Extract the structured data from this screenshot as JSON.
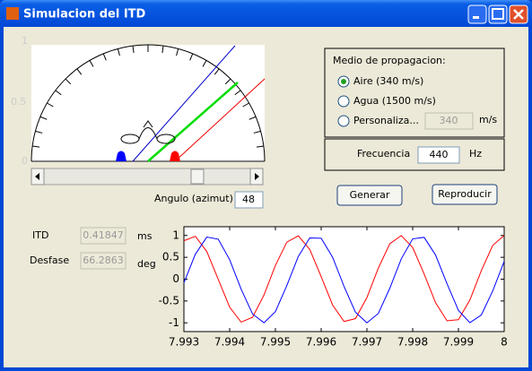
{
  "window": {
    "title": "Simulacion del ITD"
  },
  "diagram": {
    "axis_labels": [
      "1",
      "0.5",
      "0"
    ]
  },
  "angle": {
    "label": "Angulo (azimut)",
    "value": "48"
  },
  "medium": {
    "title": "Medio de propagacion:",
    "options": [
      "Aire (340 m/s)",
      "Agua (1500 m/s)",
      "Personaliza..."
    ],
    "custom_value": "340",
    "custom_unit": "m/s"
  },
  "frequency": {
    "label": "Frecuencia",
    "value": "440",
    "unit": "Hz"
  },
  "buttons": [
    "Generar",
    "Reproducir"
  ],
  "itd": {
    "label": "ITD",
    "value": "0.41847",
    "unit": "ms"
  },
  "phase": {
    "label": "Desfase",
    "value": "66.2863",
    "unit": "deg"
  },
  "plot": {
    "type": "line",
    "x": [
      7.993,
      7.99325,
      7.9935,
      7.99375,
      7.994,
      7.99425,
      7.9945,
      7.99475,
      7.995,
      7.99525,
      7.9955,
      7.99575,
      7.996,
      7.99625,
      7.9965,
      7.99675,
      7.997,
      7.99725,
      7.9975,
      7.99775,
      7.998,
      7.99825,
      7.9985,
      7.99875,
      7.999,
      7.99925,
      7.9995,
      7.99975,
      8
    ],
    "series": [
      {
        "color": "#ff0000",
        "values": [
          0.879,
          0.981,
          0.633,
          -0.005,
          -0.641,
          -0.983,
          -0.874,
          -0.363,
          0.314,
          0.847,
          0.991,
          0.681,
          0.058,
          -0.592,
          -0.97,
          -0.903,
          -0.421,
          0.254,
          0.812,
          0.998,
          0.725,
          0.12,
          -0.54,
          -0.953,
          -0.928,
          -0.477,
          0.193,
          0.774,
          1.0
        ]
      },
      {
        "color": "#0000ff",
        "values": [
          -0.084,
          0.571,
          0.963,
          0.914,
          0.445,
          -0.228,
          -0.797,
          -0.999,
          -0.743,
          -0.146,
          0.518,
          0.944,
          0.937,
          0.5,
          -0.167,
          -0.757,
          -1.0,
          -0.784,
          -0.208,
          0.463,
          0.922,
          0.957,
          0.553,
          -0.105,
          -0.714,
          -0.996,
          -0.821,
          -0.269,
          0.407
        ]
      }
    ],
    "xlim": [
      7.993,
      8
    ],
    "xticks": [
      7.993,
      7.994,
      7.995,
      7.996,
      7.997,
      7.998,
      7.999,
      8
    ],
    "ylim": [
      -1.2,
      1.2
    ],
    "yticks": [
      -1,
      -0.5,
      0,
      0.5,
      1
    ]
  }
}
